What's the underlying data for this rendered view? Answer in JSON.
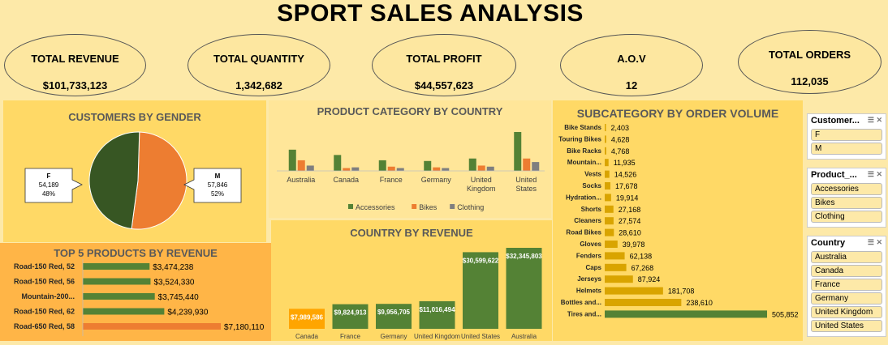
{
  "title": "SPORT SALES ANALYSIS",
  "kpis": [
    {
      "label": "TOTAL REVENUE",
      "value": "$101,733,123"
    },
    {
      "label": "TOTAL QUANTITY",
      "value": "1,342,682"
    },
    {
      "label": "TOTAL PROFIT",
      "value": "$44,557,623"
    },
    {
      "label": "A.O.V",
      "value": "12"
    },
    {
      "label": "TOTAL ORDERS",
      "value": "112,035"
    }
  ],
  "colors": {
    "green": "#548235",
    "dark_green": "#375623",
    "orange": "#ed7d31",
    "gray": "#7f7f7f",
    "gold": "#d9a400",
    "orange_bar": "#ffa500"
  },
  "chart_data": [
    {
      "type": "pie",
      "title": "CUSTOMERS BY GENDER",
      "slices": [
        {
          "name": "F",
          "value": 54189,
          "value_label": "54,189",
          "percent": "48%",
          "color": "#375623"
        },
        {
          "name": "M",
          "value": 57846,
          "value_label": "57,846",
          "percent": "52%",
          "color": "#ed7d31"
        }
      ]
    },
    {
      "type": "bar",
      "title": "PRODUCT CATEGORY BY COUNTRY",
      "categories": [
        "Australia",
        "Canada",
        "France",
        "Germany",
        "United Kingdom",
        "United States"
      ],
      "series": [
        {
          "name": "Accessories",
          "color": "#548235",
          "values": [
            60,
            45,
            30,
            28,
            35,
            110
          ]
        },
        {
          "name": "Bikes",
          "color": "#ed7d31",
          "values": [
            30,
            8,
            12,
            10,
            15,
            35
          ]
        },
        {
          "name": "Clothing",
          "color": "#7f7f7f",
          "values": [
            15,
            10,
            8,
            8,
            12,
            25
          ]
        }
      ],
      "legend": "bottom"
    },
    {
      "type": "bar",
      "orientation": "horizontal",
      "title": "TOP 5 PRODUCTS BY REVENUE",
      "categories": [
        "Road-150 Red, 52",
        "Road-150 Red, 56",
        "Mountain-200...",
        "Road-150 Red, 62",
        "Road-650 Red, 58"
      ],
      "values": [
        3474238,
        3524330,
        3745440,
        4239930,
        7180110
      ],
      "labels": [
        "$3,474,238",
        "$3,524,330",
        "$3,745,440",
        "$4,239,930",
        "$7,180,110"
      ]
    },
    {
      "type": "bar",
      "title": "COUNTRY BY REVENUE",
      "categories": [
        "Canada",
        "France",
        "Germany",
        "United Kingdom",
        "United States",
        "Australia"
      ],
      "values": [
        7989586,
        9824913,
        9956705,
        11016494,
        30599622,
        32345803
      ],
      "labels": [
        "$7,989,586",
        "$9,824,913",
        "$9,956,705",
        "$11,016,494",
        "$30,599,622",
        "$32,345,803"
      ]
    },
    {
      "type": "bar",
      "orientation": "horizontal",
      "title": "SUBCATEGORY BY ORDER VOLUME",
      "categories": [
        "Bike Stands",
        "Touring Bikes",
        "Bike Racks",
        "Mountain...",
        "Vests",
        "Socks",
        "Hydration...",
        "Shorts",
        "Cleaners",
        "Road Bikes",
        "Gloves",
        "Fenders",
        "Caps",
        "Jerseys",
        "Helmets",
        "Bottles and...",
        "Tires and..."
      ],
      "values": [
        2403,
        4628,
        4768,
        11935,
        14526,
        17678,
        19914,
        27168,
        27574,
        28610,
        39978,
        62138,
        67268,
        87924,
        181708,
        238610,
        505852
      ],
      "labels": [
        "2,403",
        "4,628",
        "4,768",
        "11,935",
        "14,526",
        "17,678",
        "19,914",
        "27,168",
        "27,574",
        "28,610",
        "39,978",
        "62,138",
        "67,268",
        "87,924",
        "181,708",
        "238,610",
        "505,852"
      ]
    }
  ],
  "slicers": [
    {
      "title": "Customer...",
      "items": [
        "F",
        "M"
      ]
    },
    {
      "title": "Product_...",
      "items": [
        "Accessories",
        "Bikes",
        "Clothing"
      ]
    },
    {
      "title": "Country",
      "items": [
        "Australia",
        "Canada",
        "France",
        "Germany",
        "United Kingdom",
        "United States"
      ]
    }
  ]
}
